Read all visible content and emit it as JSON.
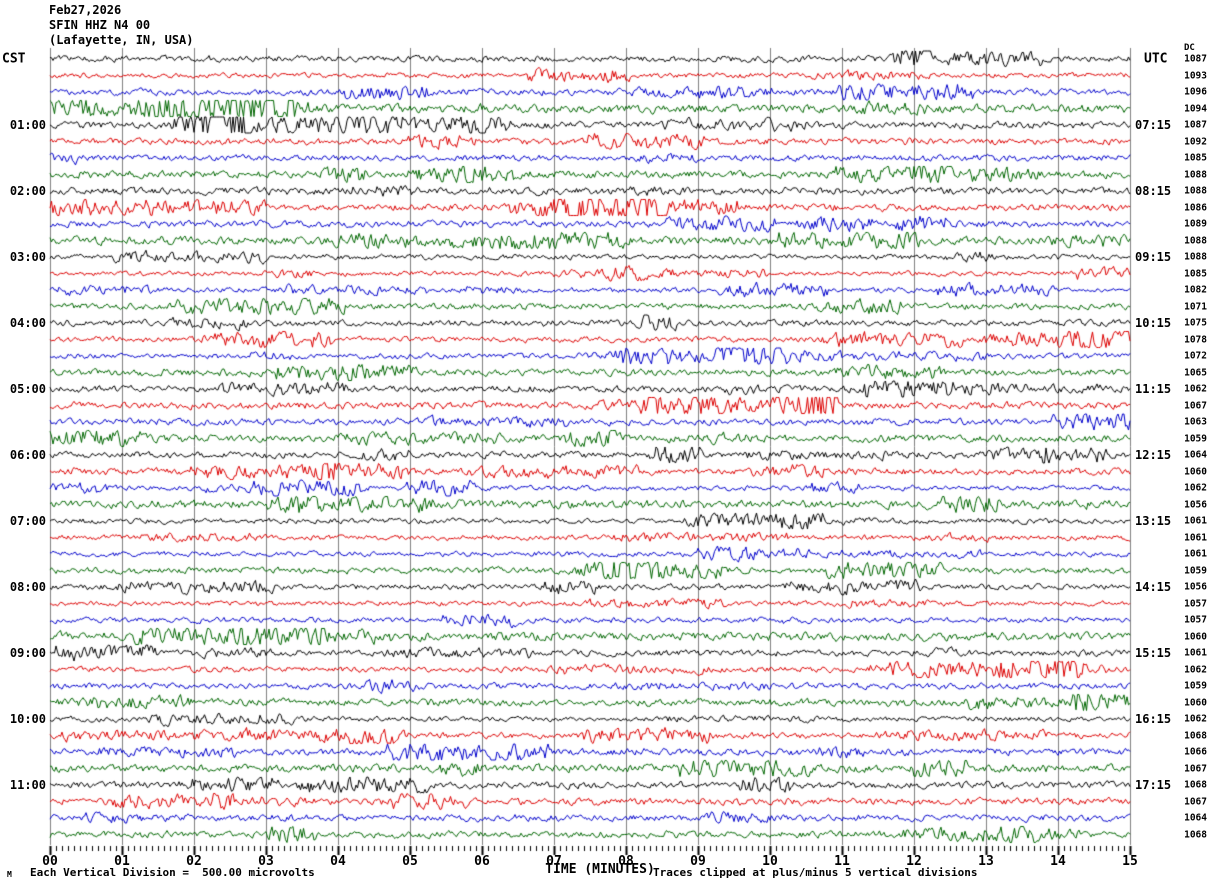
{
  "header": {
    "date": "Feb27,2026",
    "station": "SFIN HHZ N4 00",
    "location": "(Lafayette, IN, USA)"
  },
  "left_axis": {
    "label": "CST"
  },
  "right_axis": {
    "label": "UTC",
    "dc_column_label": "DC"
  },
  "x_axis": {
    "title": "TIME (MINUTES)"
  },
  "footer": {
    "left_mark": "M",
    "left_text": "Each Vertical Division =  500.00 microvolts",
    "right_text": "Traces clipped at plus/minus 5 vertical divisions"
  },
  "colors": {
    "trace_cycle": [
      "#000000",
      "#dd0000",
      "#0000cc",
      "#006600"
    ],
    "grid": "#808080",
    "axis": "#000000",
    "background": "#ffffff"
  },
  "chart_data": {
    "type": "line",
    "subtype": "helicorder-seismogram",
    "title": "SFIN HHZ N4 00 (Lafayette, IN, USA) Feb27,2026",
    "xlabel": "TIME (MINUTES)",
    "x_range_minutes": [
      0,
      15
    ],
    "x_tick_labels": [
      "00",
      "01",
      "02",
      "03",
      "04",
      "05",
      "06",
      "07",
      "08",
      "09",
      "10",
      "11",
      "12",
      "13",
      "14",
      "15"
    ],
    "minor_ticks_per_minute": 12,
    "num_traces": 48,
    "minutes_per_trace": 15,
    "traces_per_hour": 4,
    "trace_color_cycle": [
      "black",
      "red",
      "blue",
      "green"
    ],
    "left_time_labels_cst": [
      "01:00",
      "02:00",
      "03:00",
      "04:00",
      "05:00",
      "06:00",
      "07:00",
      "08:00",
      "09:00",
      "10:00",
      "11:00"
    ],
    "right_time_labels_utc": [
      "07:15",
      "08:15",
      "09:15",
      "10:15",
      "11:15",
      "12:15",
      "13:15",
      "14:15",
      "15:15",
      "16:15",
      "17:15"
    ],
    "dc_values_per_trace": [
      1087,
      1093,
      1096,
      1094,
      1087,
      1092,
      1085,
      1088,
      1088,
      1086,
      1089,
      1088,
      1088,
      1085,
      1082,
      1071,
      1075,
      1078,
      1072,
      1065,
      1062,
      1067,
      1063,
      1059,
      1064,
      1060,
      1062,
      1056,
      1061,
      1061,
      1061,
      1059,
      1056,
      1057,
      1057,
      1060,
      1061,
      1062,
      1059,
      1060,
      1062,
      1068,
      1066,
      1067,
      1068,
      1067,
      1064,
      1068
    ],
    "vertical_division_microvolts": 500.0,
    "clip_limit_divisions": 5,
    "waveform_note": "continuous background seismic noise on all 48 traces"
  }
}
